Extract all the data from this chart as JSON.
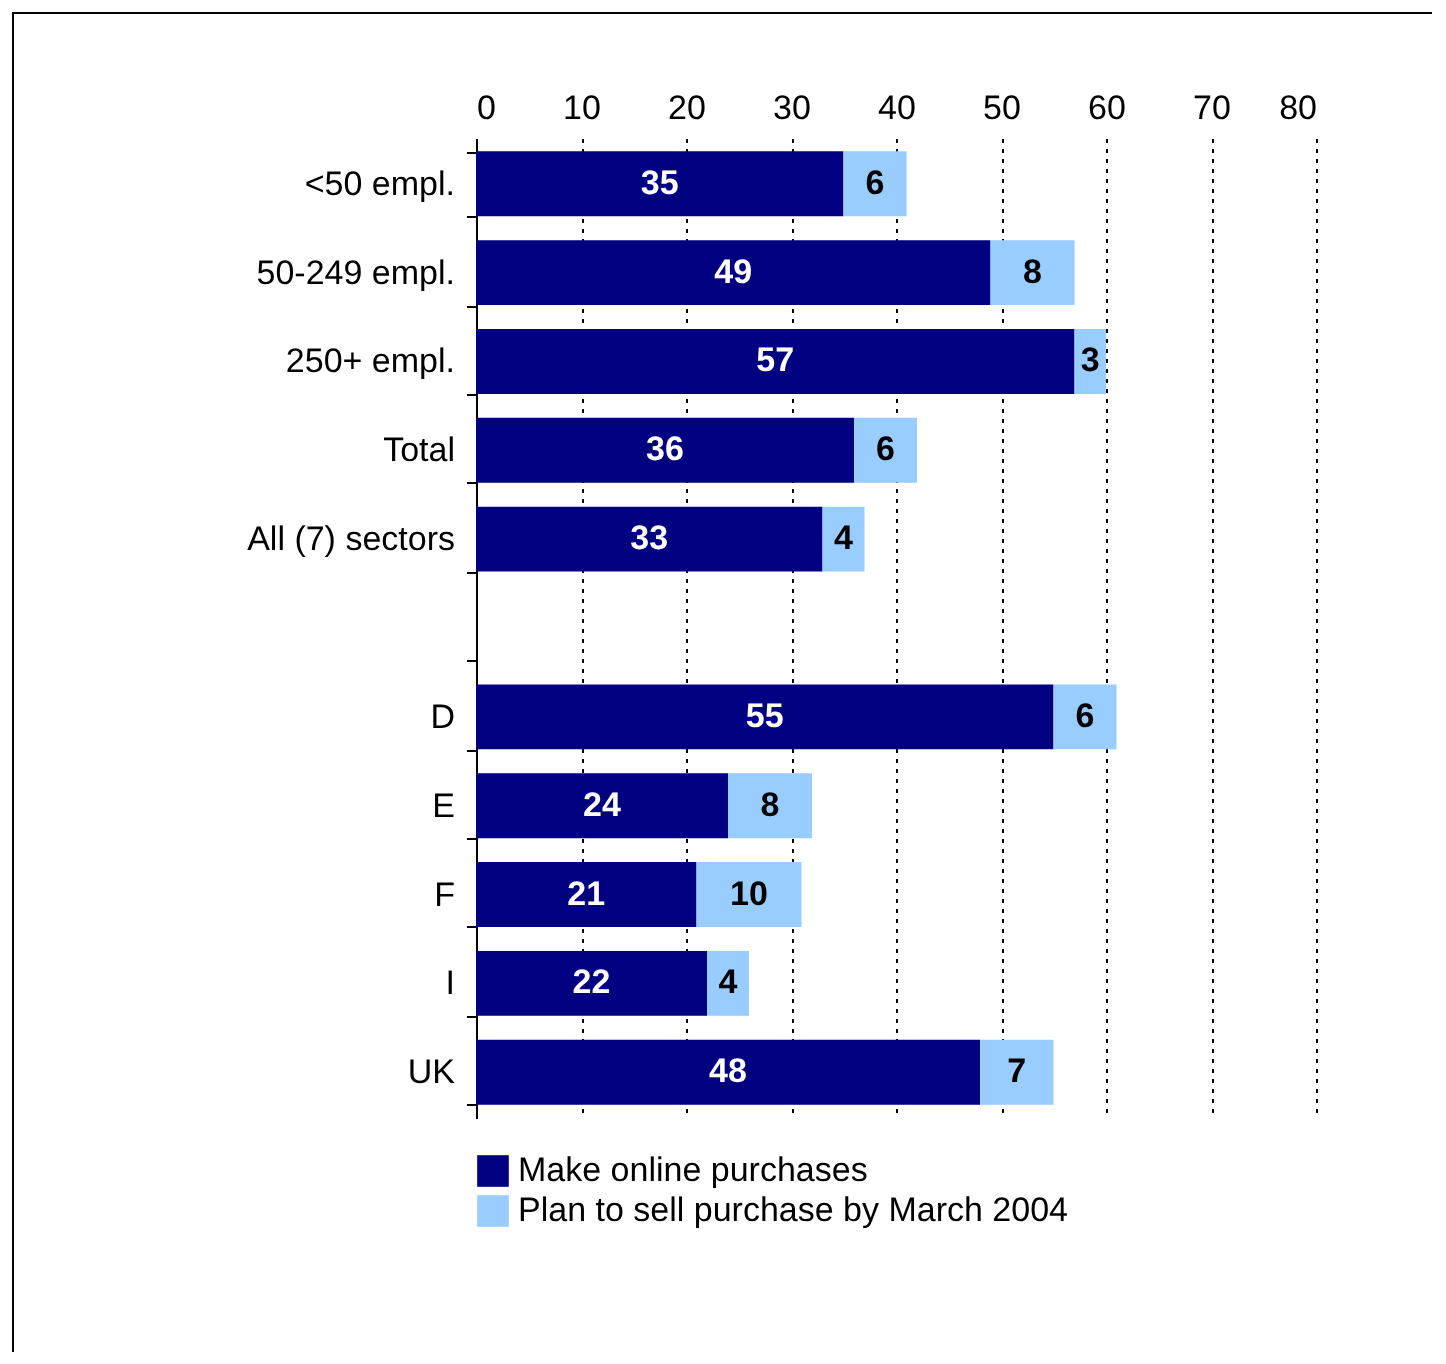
{
  "chart_data": {
    "type": "bar",
    "orientation": "horizontal",
    "stacked": true,
    "data_labels": true,
    "grid": "x",
    "legend": "bottom",
    "categories": [
      "<50 empl.",
      "50-249 empl.",
      "250+ empl.",
      "Total",
      "All (7) sectors",
      null,
      "D",
      "E",
      "F",
      "I",
      "UK"
    ],
    "series": [
      {
        "name": "Make online purchases",
        "color": "#000080",
        "values": [
          35,
          49,
          57,
          36,
          33,
          null,
          55,
          24,
          21,
          22,
          48
        ]
      },
      {
        "name": "Plan to sell purchase by March 2004",
        "color": "#99ccff",
        "values": [
          6,
          8,
          3,
          6,
          4,
          null,
          6,
          8,
          10,
          4,
          7
        ]
      }
    ],
    "xlim": [
      0,
      80
    ],
    "xticks": [
      0,
      10,
      20,
      30,
      40,
      50,
      60,
      70,
      80
    ]
  }
}
